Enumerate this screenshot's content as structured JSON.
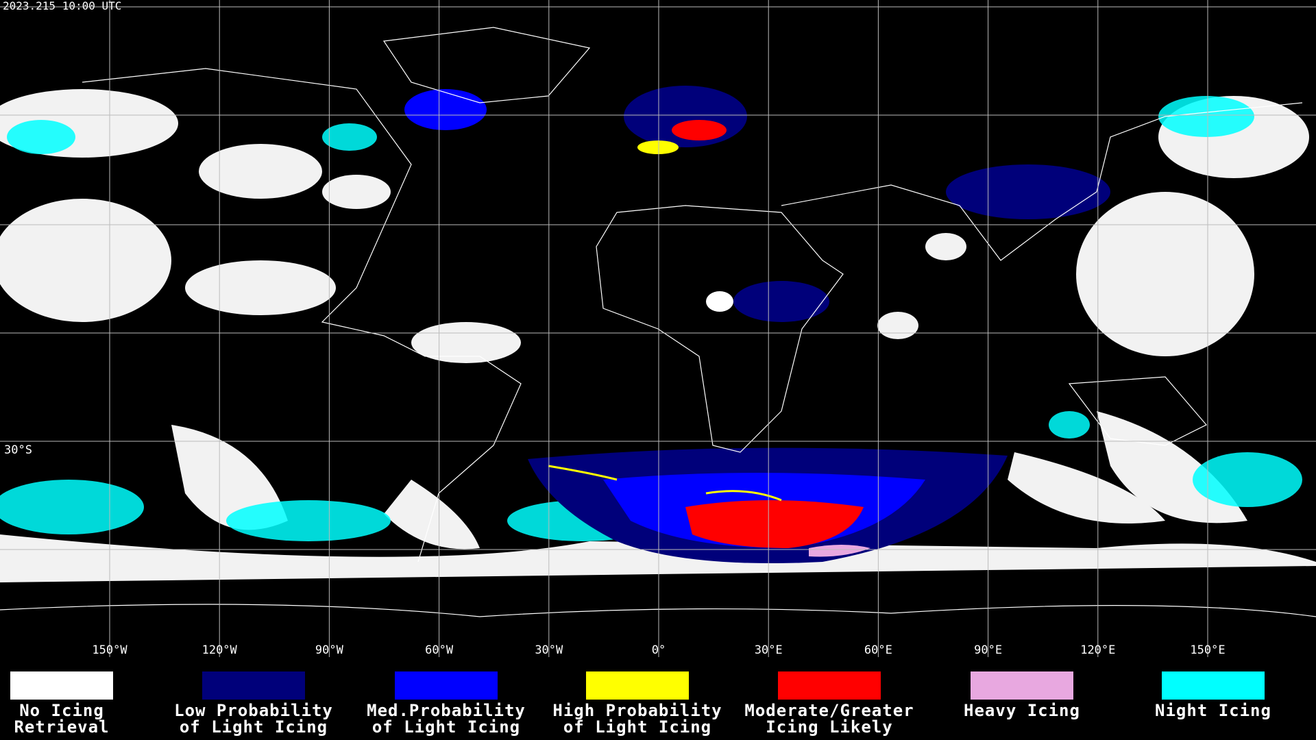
{
  "header": {
    "timestamp": "2023.215 10:00 UTC"
  },
  "map": {
    "longitude_labels": [
      "150°W",
      "120°W",
      "90°W",
      "60°W",
      "30°W",
      "0°",
      "30°E",
      "60°E",
      "90°E",
      "120°E",
      "150°E"
    ],
    "latitude_labels": [
      "30°S"
    ]
  },
  "legend": {
    "items": [
      {
        "label_lines": [
          "No Icing",
          "Retrieval"
        ],
        "color": "#ffffff"
      },
      {
        "label_lines": [
          "Low Probability",
          "of Light Icing"
        ],
        "color": "#00007a"
      },
      {
        "label_lines": [
          "Med.Probability",
          "of Light Icing"
        ],
        "color": "#0000ff"
      },
      {
        "label_lines": [
          "High Probability",
          "of Light Icing"
        ],
        "color": "#ffff00"
      },
      {
        "label_lines": [
          "Moderate/Greater",
          "Icing Likely"
        ],
        "color": "#ff0000"
      },
      {
        "label_lines": [
          "Heavy Icing"
        ],
        "color": "#e8a8e0"
      },
      {
        "label_lines": [
          "Night Icing"
        ],
        "color": "#00ffff"
      }
    ]
  }
}
